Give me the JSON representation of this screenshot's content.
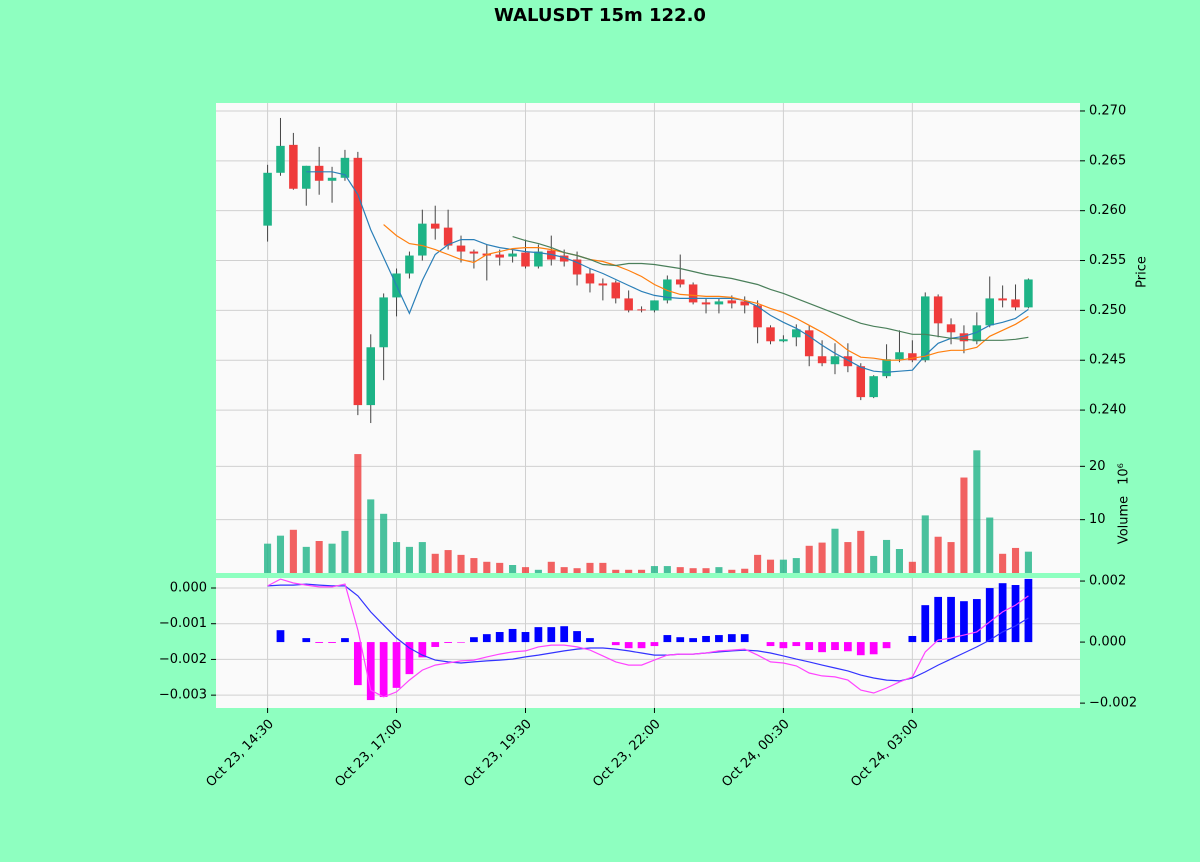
{
  "chart_data": [
    {
      "type": "candlestick",
      "title": "WALUSDT 15m 122.0",
      "ylabel": "Price",
      "xlim": [
        -4,
        63
      ],
      "ylim": [
        0.2373,
        0.2708
      ],
      "yticks": [
        {
          "value": 0.24,
          "label": "0.240"
        },
        {
          "value": 0.245,
          "label": "0.245"
        },
        {
          "value": 0.25,
          "label": "0.250"
        },
        {
          "value": 0.255,
          "label": "0.255"
        },
        {
          "value": 0.26,
          "label": "0.260"
        },
        {
          "value": 0.265,
          "label": "0.265"
        },
        {
          "value": 0.27,
          "label": "0.270"
        }
      ],
      "grid": true,
      "up_color": "#1db386",
      "down_color": "#ef3b3b",
      "open": [
        0.2585,
        0.2638,
        0.2666,
        0.2622,
        0.2645,
        0.263,
        0.2633,
        0.2653,
        0.2405,
        0.2463,
        0.2513,
        0.2537,
        0.2555,
        0.2587,
        0.2583,
        0.2565,
        0.2559,
        0.2557,
        0.2556,
        0.2554,
        0.2558,
        0.2544,
        0.256,
        0.2555,
        0.2551,
        0.2537,
        0.2527,
        0.2528,
        0.2512,
        0.2501,
        0.25,
        0.251,
        0.2531,
        0.2526,
        0.2508,
        0.2506,
        0.251,
        0.2509,
        0.2505,
        0.2483,
        0.2469,
        0.2473,
        0.248,
        0.2454,
        0.2446,
        0.2454,
        0.2444,
        0.2413,
        0.2434,
        0.2451,
        0.2457,
        0.245,
        0.2514,
        0.2486,
        0.2477,
        0.2469,
        0.2485,
        0.2512,
        0.2511,
        0.2503
      ],
      "high": [
        0.2646,
        0.2693,
        0.2678,
        0.2645,
        0.2664,
        0.2644,
        0.2661,
        0.2659,
        0.2476,
        0.2517,
        0.2542,
        0.2559,
        0.2601,
        0.2605,
        0.2601,
        0.2575,
        0.2561,
        0.2566,
        0.2561,
        0.2561,
        0.2571,
        0.2566,
        0.2575,
        0.2561,
        0.2559,
        0.2542,
        0.2532,
        0.253,
        0.252,
        0.2504,
        0.251,
        0.2535,
        0.2556,
        0.2528,
        0.2512,
        0.2512,
        0.2515,
        0.2514,
        0.251,
        0.2485,
        0.2475,
        0.2486,
        0.2485,
        0.247,
        0.2467,
        0.2467,
        0.2447,
        0.2435,
        0.2466,
        0.248,
        0.247,
        0.2518,
        0.2516,
        0.2492,
        0.2485,
        0.2498,
        0.2534,
        0.2525,
        0.2526,
        0.2532
      ],
      "low": [
        0.2569,
        0.2635,
        0.2621,
        0.2605,
        0.2616,
        0.2608,
        0.263,
        0.2395,
        0.2387,
        0.243,
        0.2494,
        0.2532,
        0.255,
        0.2571,
        0.2561,
        0.2548,
        0.2542,
        0.253,
        0.2545,
        0.2548,
        0.2542,
        0.2542,
        0.2545,
        0.2544,
        0.2525,
        0.2518,
        0.251,
        0.2507,
        0.2498,
        0.2498,
        0.2498,
        0.2507,
        0.2523,
        0.2506,
        0.2497,
        0.2497,
        0.2502,
        0.2497,
        0.2467,
        0.2466,
        0.2468,
        0.2464,
        0.2444,
        0.2444,
        0.2436,
        0.2438,
        0.241,
        0.2412,
        0.2432,
        0.2448,
        0.2448,
        0.2448,
        0.2473,
        0.2466,
        0.2457,
        0.2466,
        0.2483,
        0.2503,
        0.25,
        0.2502
      ],
      "close": [
        0.2638,
        0.2665,
        0.2622,
        0.2645,
        0.263,
        0.2633,
        0.2653,
        0.2405,
        0.2463,
        0.2513,
        0.2537,
        0.2555,
        0.2587,
        0.2582,
        0.2565,
        0.2559,
        0.2557,
        0.2555,
        0.2553,
        0.2557,
        0.2544,
        0.2559,
        0.2551,
        0.2549,
        0.2536,
        0.2527,
        0.2525,
        0.2512,
        0.25,
        0.25,
        0.251,
        0.2531,
        0.2526,
        0.2508,
        0.2506,
        0.2509,
        0.2507,
        0.2505,
        0.2483,
        0.2469,
        0.2471,
        0.2481,
        0.2454,
        0.2447,
        0.2454,
        0.2444,
        0.2413,
        0.2434,
        0.2451,
        0.2458,
        0.245,
        0.2514,
        0.2487,
        0.2478,
        0.2469,
        0.2485,
        0.2512,
        0.251,
        0.2503,
        0.2531
      ],
      "series": [
        {
          "color": "#2a7fb8",
          "values": [
            null,
            null,
            null,
            0.2639,
            0.2639,
            0.2639,
            0.2636,
            0.2616,
            0.2581,
            0.2553,
            0.2525,
            0.2497,
            0.253,
            0.2556,
            0.2566,
            0.2571,
            0.2571,
            0.2566,
            0.2563,
            0.2561,
            0.2559,
            0.2558,
            0.2556,
            0.2553,
            0.2548,
            0.2542,
            0.2537,
            0.2531,
            0.2525,
            0.2519,
            0.2515,
            0.2513,
            0.2512,
            0.2512,
            0.2512,
            0.2512,
            0.2512,
            0.251,
            0.2504,
            0.2495,
            0.2488,
            0.2482,
            0.2474,
            0.2465,
            0.2457,
            0.245,
            0.2443,
            0.2439,
            0.2438,
            0.2439,
            0.244,
            0.2455,
            0.2467,
            0.2472,
            0.2474,
            0.2478,
            0.2485,
            0.2488,
            0.2492,
            0.2501
          ]
        },
        {
          "color": "#ff7f0e",
          "values": [
            null,
            null,
            null,
            null,
            null,
            null,
            null,
            null,
            null,
            0.2586,
            0.2575,
            0.2567,
            0.2565,
            0.2561,
            0.2556,
            0.2551,
            0.2548,
            0.2556,
            0.2559,
            0.2562,
            0.2563,
            0.2563,
            0.2561,
            0.2558,
            0.2555,
            0.2551,
            0.2549,
            0.2545,
            0.254,
            0.2534,
            0.2526,
            0.252,
            0.2516,
            0.2515,
            0.2514,
            0.2514,
            0.2513,
            0.251,
            0.2507,
            0.2502,
            0.2498,
            0.2492,
            0.2485,
            0.2478,
            0.247,
            0.246,
            0.2453,
            0.2452,
            0.245,
            0.245,
            0.2452,
            0.2454,
            0.2458,
            0.246,
            0.246,
            0.2463,
            0.2474,
            0.248,
            0.2486,
            0.2494
          ]
        },
        {
          "color": "#4a7f5a",
          "values": [
            null,
            null,
            null,
            null,
            null,
            null,
            null,
            null,
            null,
            null,
            null,
            null,
            null,
            null,
            null,
            null,
            null,
            null,
            null,
            0.2574,
            0.257,
            0.2567,
            0.2563,
            0.2558,
            0.2555,
            0.2551,
            0.2546,
            0.2545,
            0.2547,
            0.2547,
            0.2546,
            0.2544,
            0.2542,
            0.2539,
            0.2536,
            0.2534,
            0.2532,
            0.2529,
            0.2526,
            0.2521,
            0.2517,
            0.2512,
            0.2507,
            0.2502,
            0.2497,
            0.2492,
            0.2487,
            0.2484,
            0.2482,
            0.2479,
            0.2476,
            0.2476,
            0.2474,
            0.2472,
            0.2471,
            0.247,
            0.247,
            0.247,
            0.2471,
            0.2473
          ]
        }
      ]
    },
    {
      "type": "bar",
      "ylabel": "Volume",
      "scale_label": "10⁶",
      "xlim": [
        -4,
        63
      ],
      "ylim": [
        0,
        25.5
      ],
      "yticks": [
        10,
        20
      ],
      "grid": true,
      "values": [
        5.5,
        7.0,
        8.1,
        4.9,
        6.0,
        5.5,
        7.9,
        22.3,
        13.8,
        11.1,
        5.8,
        4.9,
        5.8,
        3.6,
        4.3,
        3.4,
        2.8,
        2.1,
        1.9,
        1.5,
        1.1,
        0.6,
        2.1,
        1.1,
        0.9,
        1.9,
        1.9,
        0.6,
        0.6,
        0.6,
        1.3,
        1.3,
        1.1,
        0.9,
        0.9,
        1.1,
        0.6,
        0.8,
        3.4,
        2.5,
        2.5,
        2.8,
        5.1,
        5.7,
        8.3,
        5.8,
        7.9,
        3.2,
        6.2,
        4.5,
        2.1,
        10.8,
        6.8,
        5.8,
        17.9,
        23.0,
        10.4,
        3.6,
        4.7,
        4.0
      ]
    },
    {
      "type": "line",
      "xlim": [
        -4,
        63
      ],
      "ylim": [
        -0.00336,
        0.00028
      ],
      "y2lim": [
        -0.00216,
        0.0021
      ],
      "grid": true,
      "xticks": [
        {
          "value": 0,
          "label": "Oct 23, 14:30"
        },
        {
          "value": 10,
          "label": "Oct 23, 17:00"
        },
        {
          "value": 20,
          "label": "Oct 23, 19:30"
        },
        {
          "value": 30,
          "label": "Oct 23, 22:00"
        },
        {
          "value": 40,
          "label": "Oct 24, 00:30"
        },
        {
          "value": 50,
          "label": "Oct 24, 03:00"
        }
      ],
      "yticks": [
        {
          "value": 0,
          "label": "0.000"
        },
        {
          "value": -0.001,
          "label": "−0.001"
        },
        {
          "value": -0.002,
          "label": "−0.002"
        },
        {
          "value": -0.003,
          "label": "−0.003"
        }
      ],
      "y2ticks": [
        {
          "value": 0.002,
          "label": "0.002"
        },
        {
          "value": 0,
          "label": "0.000"
        },
        {
          "value": -0.002,
          "label": "−0.002"
        }
      ],
      "series": [
        {
          "kind": "bar",
          "axis": "y2",
          "color": "#0000ff",
          "negative_color": "#ff00ff",
          "values": [
            0,
            0.00039,
            0,
            0.00013,
            -3e-05,
            -3e-05,
            0.00013,
            -0.00141,
            -0.0019,
            -0.0018,
            -0.0015,
            -0.00105,
            -0.0005,
            -0.00016,
            -3e-05,
            -2e-05,
            0.00016,
            0.00026,
            0.00033,
            0.00043,
            0.00033,
            0.00049,
            0.00049,
            0.00052,
            0.00036,
            0.00013,
            0,
            -0.0001,
            -0.0002,
            -0.0002,
            -0.00013,
            0.00023,
            0.00016,
            0.00013,
            0.0002,
            0.00023,
            0.00026,
            0.00026,
            0,
            -0.00013,
            -0.0002,
            -0.00013,
            -0.00026,
            -0.00033,
            -0.00026,
            -0.0003,
            -0.00043,
            -0.0004,
            -0.0002,
            0,
            0.0002,
            0.00121,
            0.00148,
            0.00148,
            0.00134,
            0.00141,
            0.00177,
            0.00193,
            0.00187,
            0.00207
          ]
        },
        {
          "kind": "line",
          "color": "#3333ff",
          "values": [
            6e-05,
            8e-05,
            8e-05,
            0.00011,
            8e-05,
            6e-05,
            6e-05,
            -0.00022,
            -0.00067,
            -0.00104,
            -0.0014,
            -0.00168,
            -0.00188,
            -0.00202,
            -0.00207,
            -0.0021,
            -0.00207,
            -0.00204,
            -0.00202,
            -0.00199,
            -0.00193,
            -0.00188,
            -0.00182,
            -0.00176,
            -0.00171,
            -0.00168,
            -0.00168,
            -0.00171,
            -0.00176,
            -0.00182,
            -0.00188,
            -0.00188,
            -0.00185,
            -0.00185,
            -0.00182,
            -0.00179,
            -0.00176,
            -0.00174,
            -0.00176,
            -0.00182,
            -0.0019,
            -0.00199,
            -0.00207,
            -0.00216,
            -0.00224,
            -0.00232,
            -0.00244,
            -0.00252,
            -0.00258,
            -0.0026,
            -0.00252,
            -0.00235,
            -0.00216,
            -0.00199,
            -0.00182,
            -0.00165,
            -0.00146,
            -0.00123,
            -0.00106,
            -0.00084
          ]
        },
        {
          "kind": "line",
          "color": "#ff44ff",
          "values": [
            6e-05,
            0.00025,
            0.00014,
            8e-05,
            3e-05,
            3e-05,
            0.00011,
            -0.00118,
            -0.00286,
            -0.00305,
            -0.00291,
            -0.00258,
            -0.0023,
            -0.00216,
            -0.0021,
            -0.00204,
            -0.00202,
            -0.00193,
            -0.00185,
            -0.00179,
            -0.00176,
            -0.00165,
            -0.0016,
            -0.0016,
            -0.00165,
            -0.00174,
            -0.0019,
            -0.00207,
            -0.00216,
            -0.00216,
            -0.00202,
            -0.00188,
            -0.00185,
            -0.00185,
            -0.00182,
            -0.00176,
            -0.00174,
            -0.00171,
            -0.00188,
            -0.00207,
            -0.0021,
            -0.00218,
            -0.00238,
            -0.00246,
            -0.00249,
            -0.00258,
            -0.00286,
            -0.00294,
            -0.0028,
            -0.00263,
            -0.00249,
            -0.00179,
            -0.00146,
            -0.0014,
            -0.00132,
            -0.00123,
            -0.00095,
            -0.00067,
            -0.00048,
            -0.00022
          ]
        }
      ]
    }
  ]
}
